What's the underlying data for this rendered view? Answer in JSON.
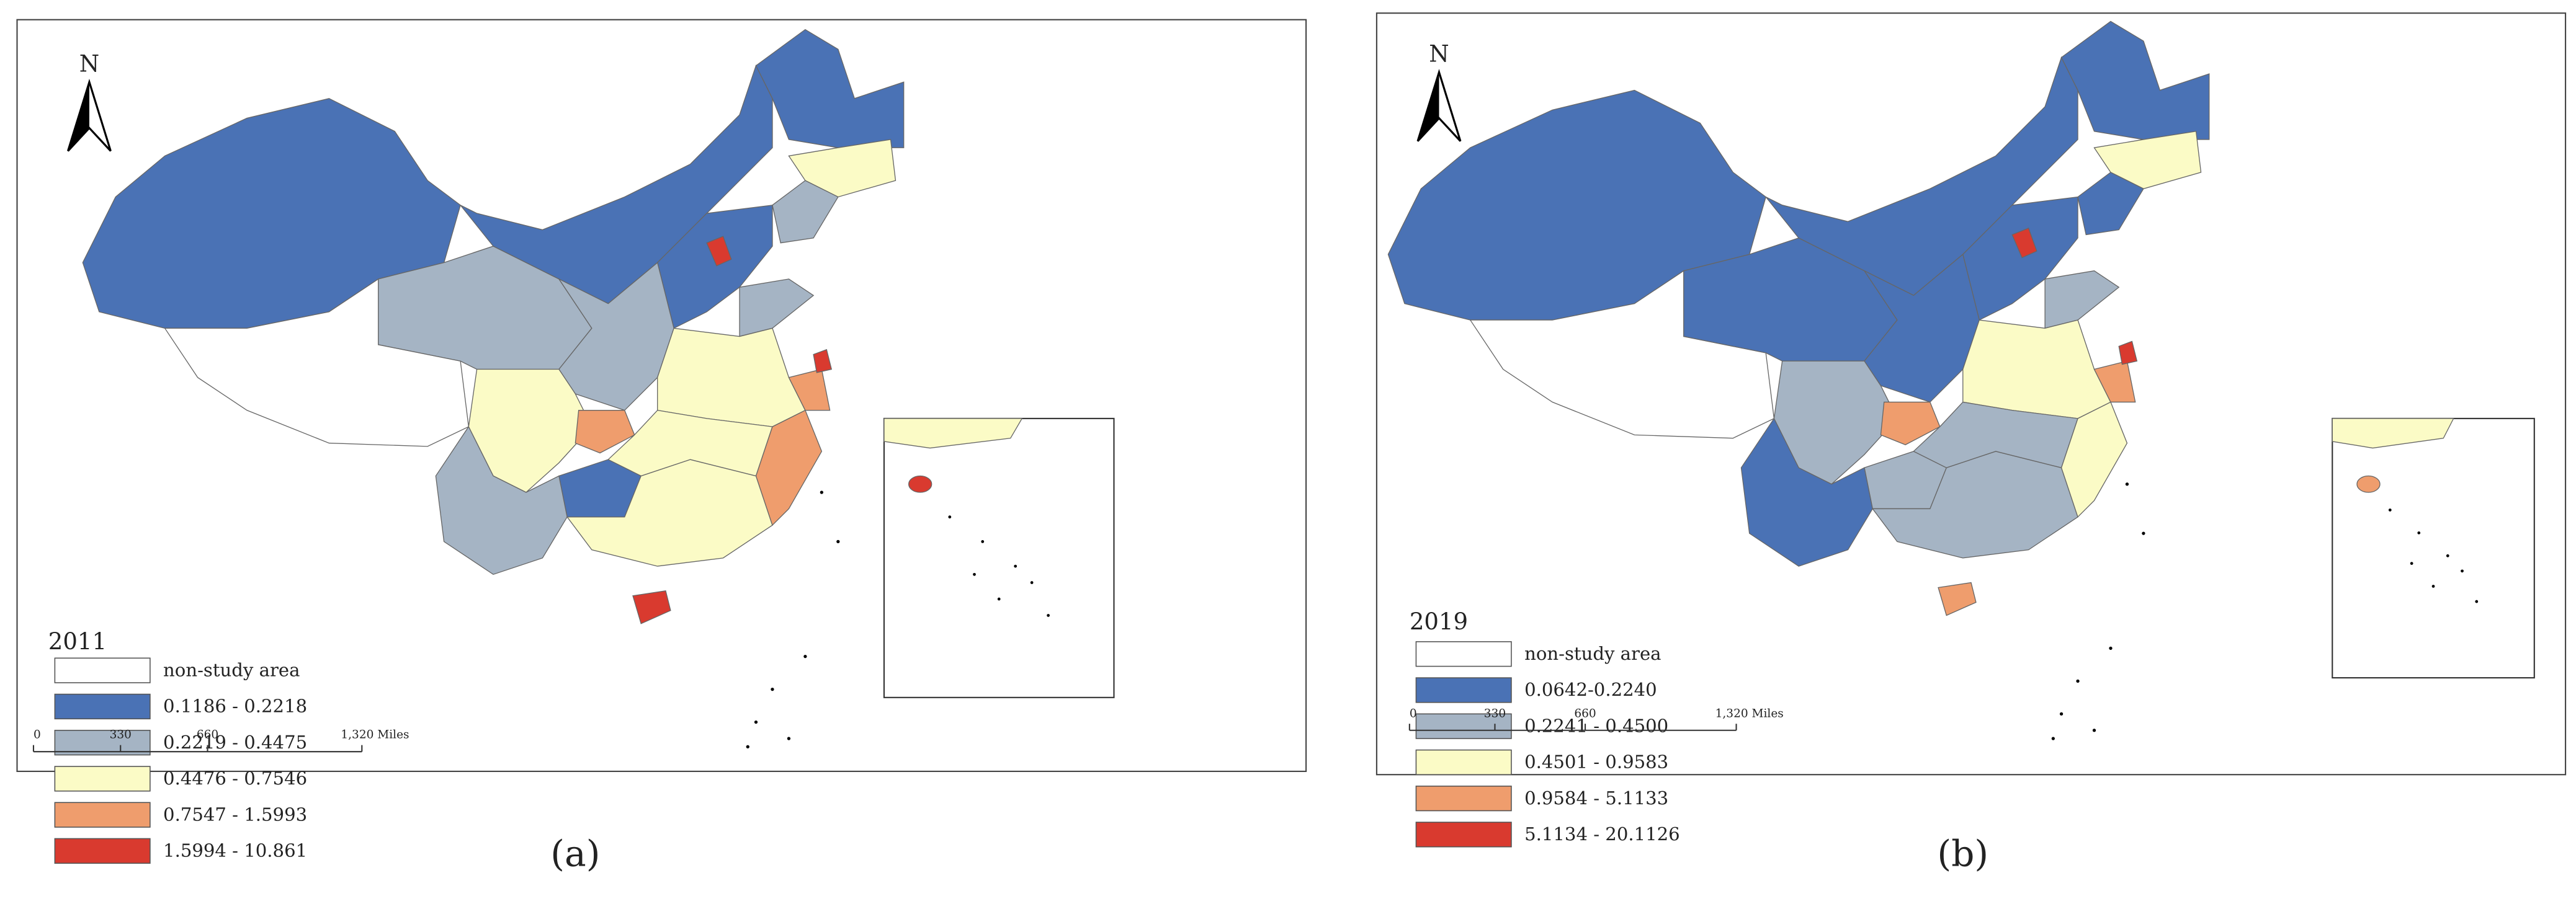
{
  "panels": [
    {
      "north": "N",
      "year": "2011",
      "legend": [
        {
          "label": "non-study area",
          "color": "#ffffff"
        },
        {
          "label": "0.1186 - 0.2218",
          "color": "#4a72b5"
        },
        {
          "label": "0.2219 - 0.4475",
          "color": "#a5b4c4"
        },
        {
          "label": "0.4476 - 0.7546",
          "color": "#fbfbc6"
        },
        {
          "label": "0.7547 - 1.5993",
          "color": "#ef9d6d"
        },
        {
          "label": "1.5994 - 10.861",
          "color": "#d93a2f"
        }
      ],
      "scale": [
        "0",
        "330",
        "660",
        "1,320 Miles"
      ],
      "caption": "(a)"
    },
    {
      "north": "N",
      "year": "2019",
      "legend": [
        {
          "label": "non-study area",
          "color": "#ffffff"
        },
        {
          "label": "0.0642-0.2240",
          "color": "#4a72b5"
        },
        {
          "label": "0.2241 - 0.4500",
          "color": "#a5b4c4"
        },
        {
          "label": "0.4501 - 0.9583",
          "color": "#fbfbc6"
        },
        {
          "label": "0.9584 - 5.1133",
          "color": "#ef9d6d"
        },
        {
          "label": "5.1134 - 20.1126",
          "color": "#d93a2f"
        }
      ],
      "scale": [
        "0",
        "330",
        "660",
        "1,320 Miles"
      ],
      "caption": "(b)"
    }
  ]
}
